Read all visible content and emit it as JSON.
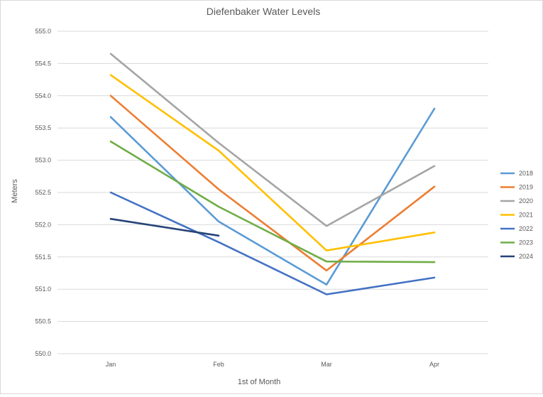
{
  "chart_data": {
    "type": "line",
    "title": "Diefenbaker Water Levels",
    "xlabel": "1st of Month",
    "ylabel": "Meters",
    "categories": [
      "Jan",
      "Feb",
      "Mar",
      "Apr"
    ],
    "ylim": [
      550.0,
      555.0
    ],
    "y_ticks": [
      "550.0",
      "550.5",
      "551.0",
      "551.5",
      "552.0",
      "552.5",
      "553.0",
      "553.5",
      "554.0",
      "554.5",
      "555.0"
    ],
    "grid": true,
    "legend_position": "right",
    "series": [
      {
        "name": "2018",
        "color": "#5b9bd5",
        "values": [
          553.67,
          552.05,
          551.07,
          553.8
        ]
      },
      {
        "name": "2019",
        "color": "#ed7d31",
        "values": [
          554.0,
          552.55,
          551.29,
          552.59
        ]
      },
      {
        "name": "2020",
        "color": "#a5a5a5",
        "values": [
          554.65,
          553.27,
          551.98,
          552.91
        ]
      },
      {
        "name": "2021",
        "color": "#ffc000",
        "values": [
          554.32,
          553.15,
          551.6,
          551.88
        ]
      },
      {
        "name": "2022",
        "color": "#4472c4",
        "values": [
          552.5,
          551.73,
          550.92,
          551.18
        ]
      },
      {
        "name": "2023",
        "color": "#70ad47",
        "values": [
          553.29,
          552.28,
          551.43,
          551.42
        ]
      },
      {
        "name": "2024",
        "color": "#264478",
        "values": [
          552.09,
          551.83,
          null,
          null
        ]
      }
    ]
  }
}
